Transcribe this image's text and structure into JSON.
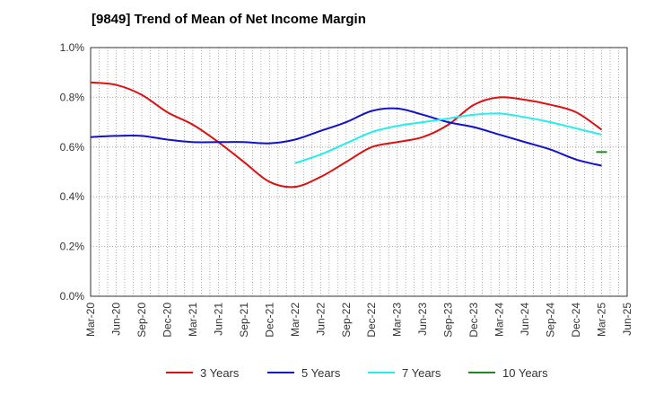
{
  "chart_data": {
    "type": "line",
    "title": "[9849]  Trend of Mean of Net Income Margin",
    "xlabel": "",
    "ylabel": "",
    "x_ticks": [
      "Mar-20",
      "Jun-20",
      "Sep-20",
      "Dec-20",
      "Mar-21",
      "Jun-21",
      "Sep-21",
      "Dec-21",
      "Mar-22",
      "Jun-22",
      "Sep-22",
      "Dec-22",
      "Mar-23",
      "Jun-23",
      "Sep-23",
      "Dec-23",
      "Mar-24",
      "Jun-24",
      "Sep-24",
      "Dec-24",
      "Mar-25",
      "Jun-25"
    ],
    "y_ticks": [
      "0.0%",
      "0.2%",
      "0.4%",
      "0.6%",
      "0.8%",
      "1.0%"
    ],
    "ylim": [
      0,
      1.0
    ],
    "y_unit": "%",
    "grid": true,
    "legend_position": "bottom",
    "series": [
      {
        "name": "3 Years",
        "color": "#dd1111",
        "x": [
          "Mar-20",
          "Jun-20",
          "Sep-20",
          "Dec-20",
          "Mar-21",
          "Jun-21",
          "Sep-21",
          "Dec-21",
          "Mar-22",
          "Jun-22",
          "Sep-22",
          "Dec-22",
          "Mar-23",
          "Jun-23",
          "Sep-23",
          "Dec-23",
          "Mar-24",
          "Jun-24",
          "Sep-24",
          "Dec-24",
          "Mar-25"
        ],
        "values": [
          0.86,
          0.85,
          0.81,
          0.74,
          0.69,
          0.62,
          0.54,
          0.46,
          0.44,
          0.48,
          0.54,
          0.6,
          0.62,
          0.64,
          0.69,
          0.77,
          0.8,
          0.79,
          0.77,
          0.74,
          0.67
        ]
      },
      {
        "name": "5 Years",
        "color": "#1111cc",
        "x": [
          "Mar-20",
          "Jun-20",
          "Sep-20",
          "Dec-20",
          "Mar-21",
          "Jun-21",
          "Sep-21",
          "Dec-21",
          "Mar-22",
          "Jun-22",
          "Sep-22",
          "Dec-22",
          "Mar-23",
          "Jun-23",
          "Sep-23",
          "Dec-23",
          "Mar-24",
          "Jun-24",
          "Sep-24",
          "Dec-24",
          "Mar-25"
        ],
        "values": [
          0.64,
          0.645,
          0.645,
          0.63,
          0.62,
          0.62,
          0.62,
          0.615,
          0.63,
          0.665,
          0.7,
          0.745,
          0.755,
          0.73,
          0.7,
          0.68,
          0.65,
          0.62,
          0.59,
          0.55,
          0.525
        ]
      },
      {
        "name": "7 Years",
        "color": "#22eeee",
        "x": [
          "Mar-22",
          "Jun-22",
          "Sep-22",
          "Dec-22",
          "Mar-23",
          "Jun-23",
          "Sep-23",
          "Dec-23",
          "Mar-24",
          "Jun-24",
          "Sep-24",
          "Dec-24",
          "Mar-25"
        ],
        "values": [
          0.535,
          0.57,
          0.615,
          0.66,
          0.685,
          0.7,
          0.715,
          0.73,
          0.735,
          0.72,
          0.7,
          0.675,
          0.65
        ]
      },
      {
        "name": "10 Years",
        "color": "#228822",
        "x": [
          "Mar-25"
        ],
        "values": [
          0.58
        ]
      }
    ]
  }
}
